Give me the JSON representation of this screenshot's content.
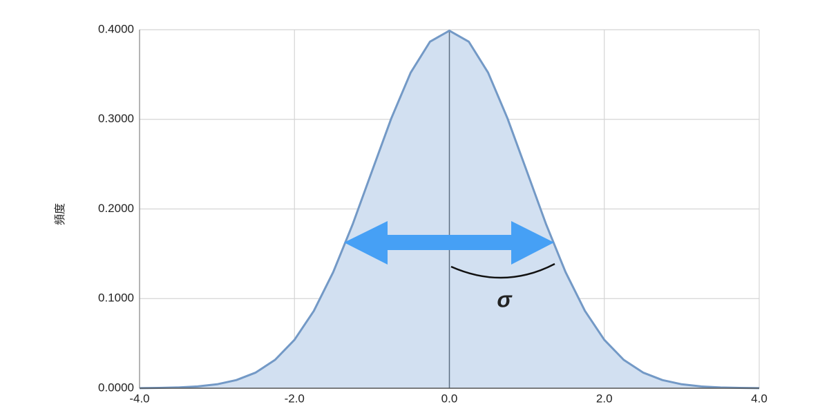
{
  "chart_data": {
    "type": "area",
    "y_label": "頻度",
    "annotation": "σ",
    "x": [
      -4,
      -3.75,
      -3.5,
      -3.25,
      -3,
      -2.75,
      -2.5,
      -2.25,
      -2,
      -1.75,
      -1.5,
      -1.25,
      -1,
      -0.75,
      -0.5,
      -0.25,
      0,
      0.25,
      0.5,
      0.75,
      1,
      1.25,
      1.5,
      1.75,
      2,
      2.25,
      2.5,
      2.75,
      3,
      3.25,
      3.5,
      3.75,
      4
    ],
    "values": [
      0.0001,
      0.0004,
      0.0009,
      0.002,
      0.0044,
      0.0091,
      0.0175,
      0.0317,
      0.054,
      0.0863,
      0.1295,
      0.1826,
      0.242,
      0.3011,
      0.3521,
      0.3867,
      0.3989,
      0.3867,
      0.3521,
      0.3011,
      0.242,
      0.1826,
      0.1295,
      0.0863,
      0.054,
      0.0317,
      0.0175,
      0.0091,
      0.0044,
      0.002,
      0.0009,
      0.0004,
      0.0001
    ],
    "color": "#7399c6",
    "fill": "#d2e0f1",
    "xlim": [
      -4,
      4
    ],
    "xticks": [
      {
        "value": -4,
        "label": "-4.0"
      },
      {
        "value": -2,
        "label": "-2.0"
      },
      {
        "value": 0,
        "label": "0.0"
      },
      {
        "value": 2,
        "label": "2.0"
      },
      {
        "value": 4,
        "label": "4.0"
      }
    ],
    "ylim": [
      0,
      0.4
    ],
    "yticks": [
      {
        "value": 0,
        "label": "0.0000"
      },
      {
        "value": 0.1,
        "label": "0.1000"
      },
      {
        "value": 0.2,
        "label": "0.2000"
      },
      {
        "value": 0.3,
        "label": "0.3000"
      },
      {
        "value": 0.4,
        "label": "0.4000"
      }
    ],
    "grid": true
  }
}
